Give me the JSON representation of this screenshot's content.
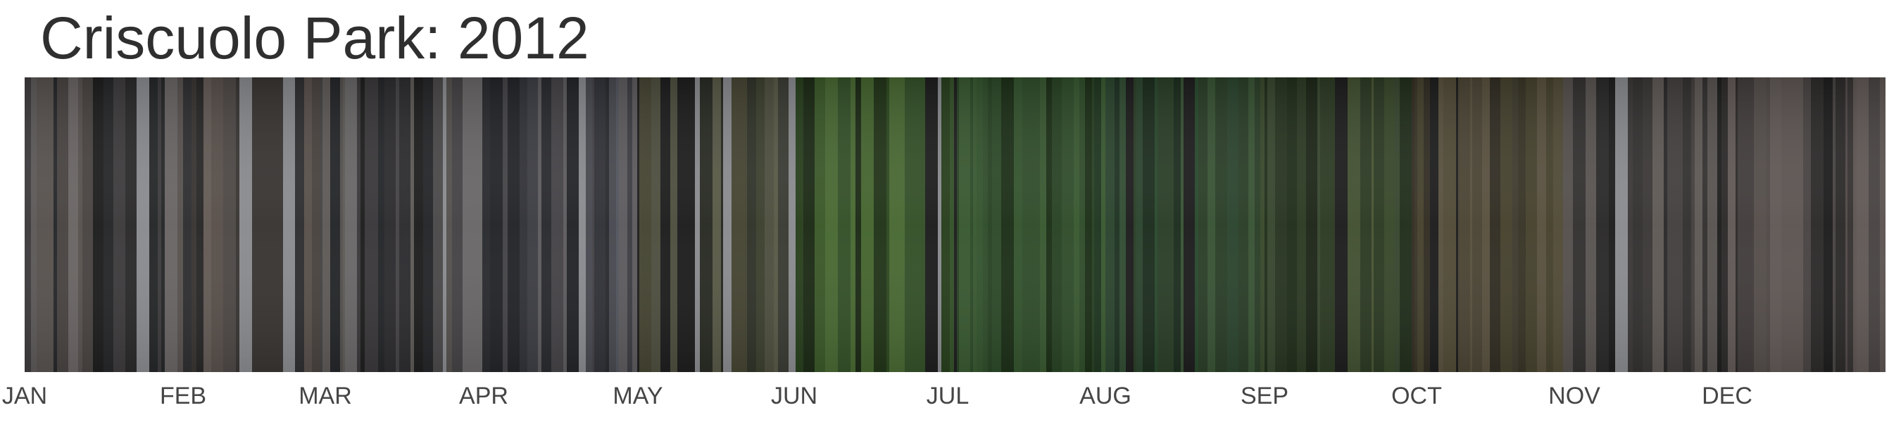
{
  "chart_data": {
    "type": "heatmap",
    "title": "Criscuolo Park: 2012",
    "months": [
      "JAN",
      "FEB",
      "MAR",
      "APR",
      "MAY",
      "JUN",
      "JUL",
      "AUG",
      "SEP",
      "OCT",
      "NOV",
      "DEC"
    ],
    "month_palettes": [
      [
        "#3a3838",
        "#4a4543",
        "#2c2b2b",
        "#595350",
        "#3f3c3e",
        "#5e5a5a",
        "#26282a",
        "#6a6665"
      ],
      [
        "#4a4440",
        "#5a514c",
        "#3a3634",
        "#2a2929",
        "#655c57",
        "#4f4a48",
        "#303032",
        "#6d6561"
      ],
      [
        "#464446",
        "#55524f",
        "#2e2e31",
        "#5f5b58",
        "#3b393b",
        "#25272a",
        "#6a6868",
        "#4c4a4b"
      ],
      [
        "#4a4b52",
        "#3e3f45",
        "#2b2c30",
        "#555760",
        "#5e5c5f",
        "#33343a",
        "#464448",
        "#24262a"
      ],
      [
        "#3b3d35",
        "#474634",
        "#2a2c25",
        "#4f5040",
        "#32352b",
        "#5a5a48",
        "#3d4230",
        "#26281f"
      ],
      [
        "#3c5a2a",
        "#2f4a22",
        "#466630",
        "#23361a",
        "#35522a",
        "#29401e",
        "#4a6a34",
        "#1e2c17"
      ],
      [
        "#2e4b2a",
        "#253f22",
        "#35552f",
        "#1e3119",
        "#3a5a32",
        "#2a4426",
        "#213822",
        "#314e2c"
      ],
      [
        "#2d4630",
        "#243a27",
        "#334e34",
        "#1e2f20",
        "#2a4a2e",
        "#3a5436",
        "#203424",
        "#2c4029"
      ],
      [
        "#3a4a2c",
        "#2e3c25",
        "#445233",
        "#23301d",
        "#394830",
        "#4b5636",
        "#2a3623",
        "#1f281a"
      ],
      [
        "#47432f",
        "#3a3628",
        "#524c38",
        "#2d2b22",
        "#5a5240",
        "#403d30",
        "#332f25",
        "#4c4636"
      ],
      [
        "#4a4645",
        "#3c3938",
        "#56514e",
        "#2c2b2b",
        "#605a56",
        "#454140",
        "#353232",
        "#5a5552"
      ],
      [
        "#514a48",
        "#433e3d",
        "#5e5653",
        "#2e2b2b",
        "#4a4544",
        "#625a57",
        "#383434",
        "#564f4c"
      ]
    ],
    "highlight_color": "#8a8c90",
    "dark_color": "#1f1f1f"
  }
}
